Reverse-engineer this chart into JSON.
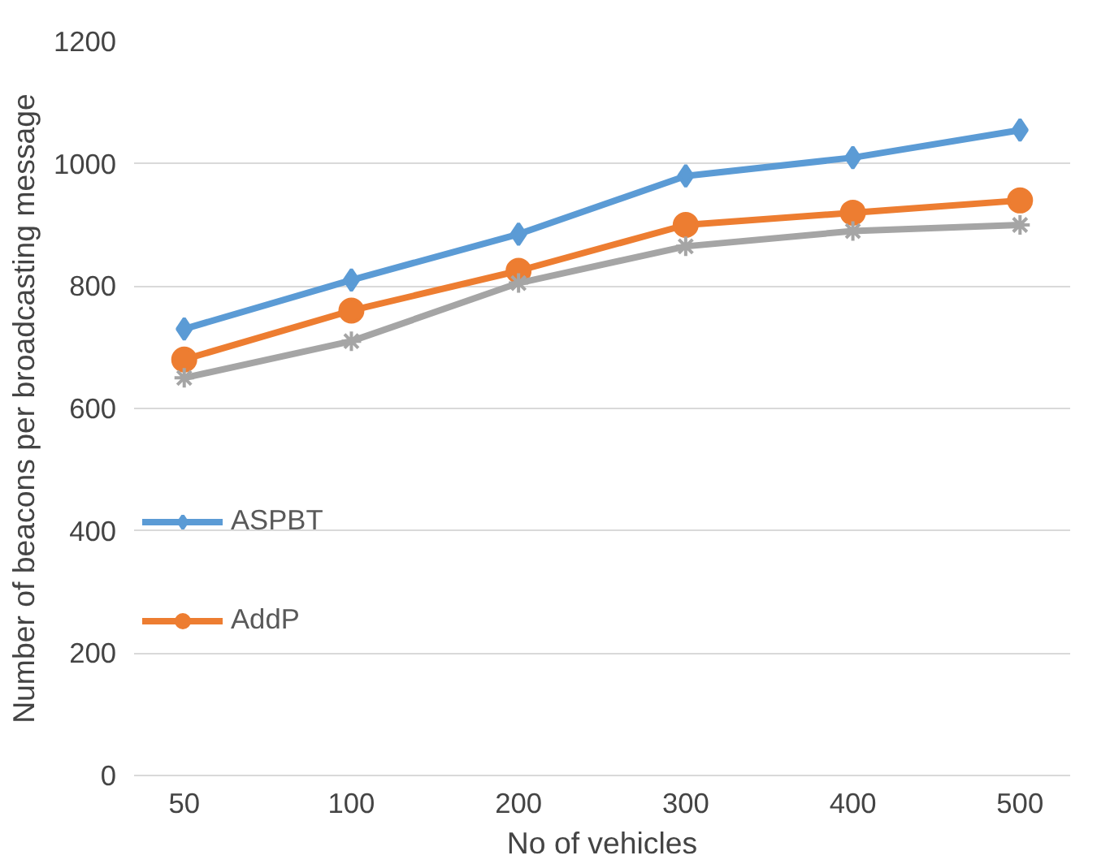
{
  "chart_data": {
    "type": "line",
    "xlabel": "No of vehicles",
    "ylabel": "Number of beacons per broadcasting message",
    "categories": [
      "50",
      "100",
      "200",
      "300",
      "400",
      "500"
    ],
    "ylim": [
      0,
      1200
    ],
    "yticks": [
      0,
      200,
      400,
      600,
      800,
      1000,
      1200
    ],
    "grid": "y",
    "legend": "left",
    "series": [
      {
        "name": "ASPBT",
        "color": "#5b9bd5",
        "marker": "diamond",
        "values": [
          730,
          810,
          885,
          980,
          1010,
          1055
        ]
      },
      {
        "name": "AddP",
        "color": "#ed7d31",
        "marker": "circle",
        "values": [
          680,
          760,
          825,
          900,
          920,
          940
        ]
      },
      {
        "color": "#a5a5a5",
        "marker": "cross",
        "values": [
          650,
          710,
          805,
          865,
          890,
          900
        ]
      }
    ]
  }
}
